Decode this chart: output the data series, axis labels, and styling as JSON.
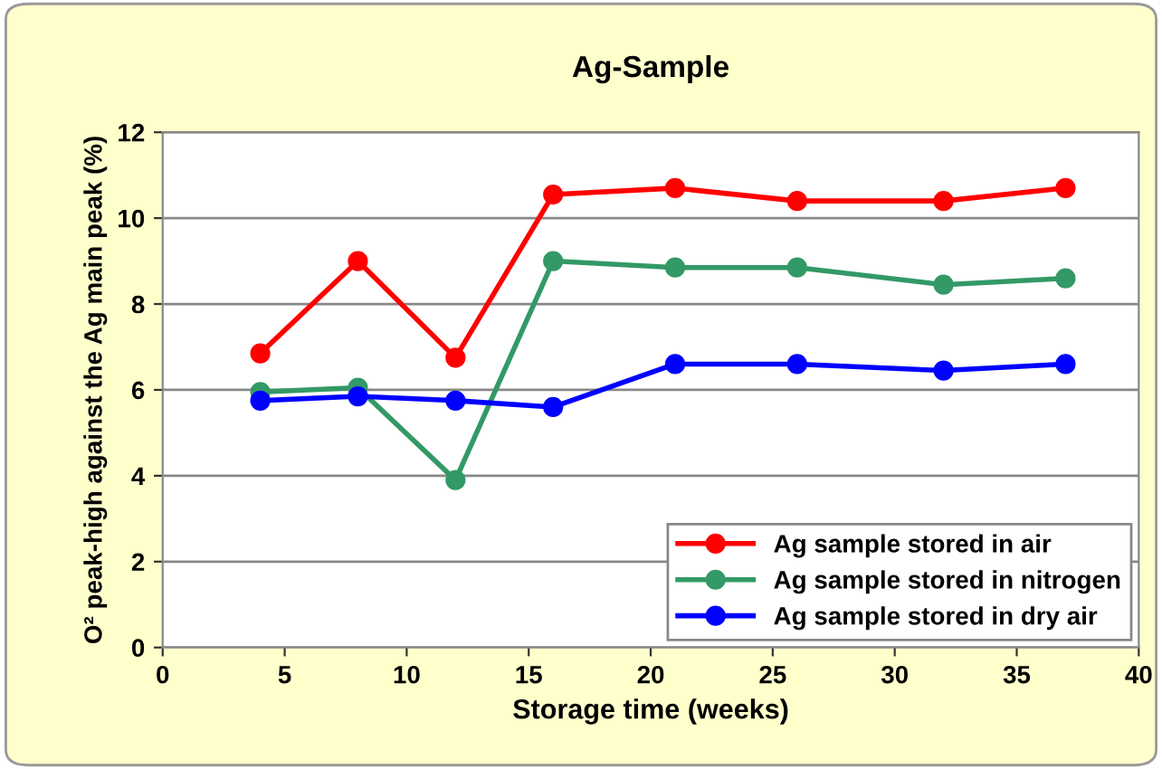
{
  "chart_data": {
    "type": "line",
    "title": "Ag-Sample",
    "xlabel": "Storage time (weeks)",
    "ylabel": "O² peak-high against the Ag main peak (%)",
    "x": [
      4,
      8,
      12,
      16,
      21,
      26,
      32,
      37
    ],
    "series": [
      {
        "name": "Ag sample stored in air",
        "color": "#ff0000",
        "values": [
          6.85,
          9.0,
          6.75,
          10.55,
          10.7,
          10.4,
          10.4,
          10.7
        ]
      },
      {
        "name": "Ag sample stored in nitrogen",
        "color": "#339966",
        "values": [
          5.95,
          6.05,
          3.9,
          9.0,
          8.85,
          8.85,
          8.45,
          8.6
        ]
      },
      {
        "name": "Ag sample stored in dry air",
        "color": "#0000ff",
        "values": [
          5.75,
          5.85,
          5.75,
          5.6,
          6.6,
          6.6,
          6.45,
          6.6
        ]
      }
    ],
    "xlim": [
      0,
      40
    ],
    "xticks": [
      0,
      5,
      10,
      15,
      20,
      25,
      30,
      35,
      40
    ],
    "ylim": [
      0,
      12
    ],
    "yticks": [
      0,
      2,
      4,
      6,
      8,
      10,
      12
    ],
    "grid": "y",
    "legend": "bottom right",
    "marker": "circle",
    "line_style": "solid"
  }
}
